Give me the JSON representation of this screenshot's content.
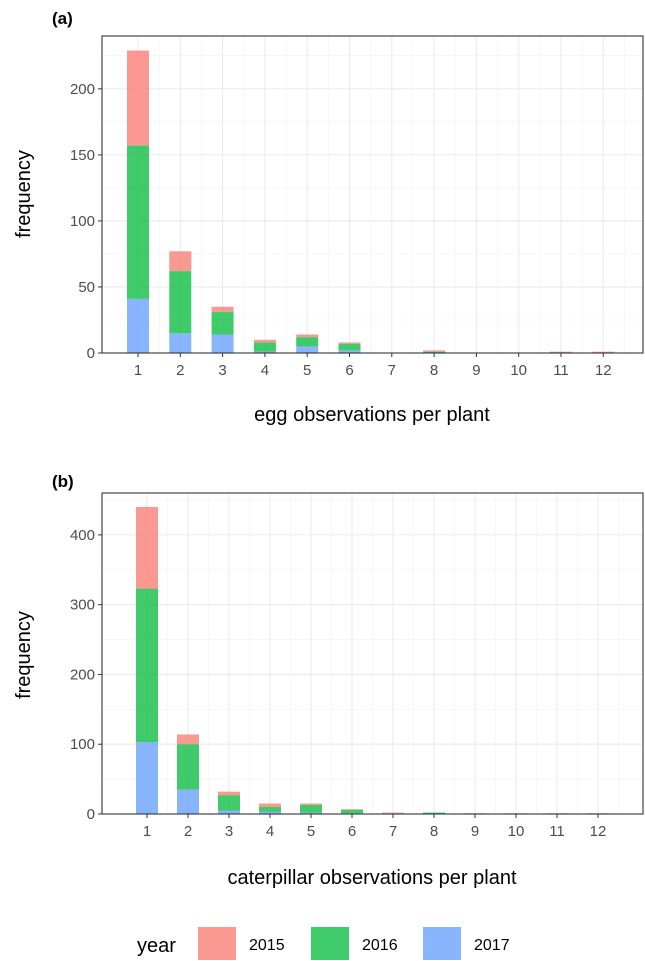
{
  "colors": {
    "2015": "#F8766D",
    "2016": "#00BA38",
    "2017": "#619CFF"
  },
  "legend": {
    "title": "year",
    "entries": [
      {
        "label": "2015",
        "color_key": "2015"
      },
      {
        "label": "2016",
        "color_key": "2016"
      },
      {
        "label": "2017",
        "color_key": "2017"
      }
    ]
  },
  "chart_data": [
    {
      "type": "bar",
      "stacked": true,
      "tag": "(a)",
      "xlabel": "egg observations per plant",
      "ylabel": "frequency",
      "categories": [
        "1",
        "2",
        "3",
        "4",
        "5",
        "6",
        "7",
        "8",
        "9",
        "10",
        "11",
        "12"
      ],
      "yticks": [
        0,
        50,
        100,
        150,
        200
      ],
      "ylim": [
        0,
        240
      ],
      "grid": true,
      "series": [
        {
          "name": "2017",
          "values": [
            41,
            15,
            14,
            1,
            5,
            2,
            0,
            0,
            0,
            0,
            0,
            0
          ]
        },
        {
          "name": "2016",
          "values": [
            116,
            47,
            17,
            7,
            7,
            5,
            0,
            1,
            0,
            0,
            0,
            0
          ]
        },
        {
          "name": "2015",
          "values": [
            72,
            15,
            4,
            2,
            2,
            1,
            0,
            1,
            0,
            0,
            1,
            1
          ]
        }
      ]
    },
    {
      "type": "bar",
      "stacked": true,
      "tag": "(b)",
      "xlabel": "caterpillar observations per plant",
      "ylabel": "frequency",
      "categories": [
        "1",
        "2",
        "3",
        "4",
        "5",
        "6",
        "7",
        "8",
        "9",
        "10",
        "11",
        "12"
      ],
      "yticks": [
        0,
        100,
        200,
        300,
        400
      ],
      "ylim": [
        0,
        460
      ],
      "grid": true,
      "series": [
        {
          "name": "2017",
          "values": [
            103,
            35,
            5,
            3,
            2,
            1,
            0,
            0,
            0,
            0,
            0,
            0
          ]
        },
        {
          "name": "2016",
          "values": [
            220,
            65,
            22,
            7,
            11,
            5,
            1,
            2,
            1,
            1,
            1,
            1
          ]
        },
        {
          "name": "2015",
          "values": [
            117,
            14,
            5,
            5,
            2,
            1,
            1,
            0,
            0,
            0,
            0,
            0
          ]
        }
      ]
    }
  ]
}
